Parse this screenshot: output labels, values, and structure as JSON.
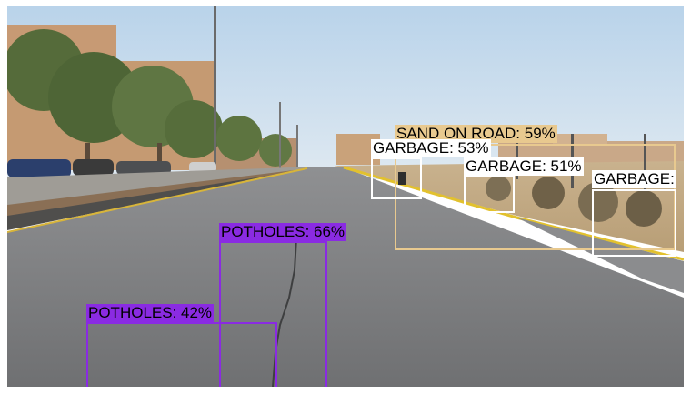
{
  "colors": {
    "pothole": "#8a2be2",
    "sand": "#e8c98f",
    "garbage": "#ffffff"
  },
  "detections": [
    {
      "label": "SAND  ON  ROAD: 59%",
      "class": "sand",
      "icon": "sand-on-road-detection"
    },
    {
      "label": "GARBAGE: 53%",
      "class": "garbage",
      "icon": "garbage-detection"
    },
    {
      "label": "GARBAGE: 51%",
      "class": "garbage",
      "icon": "garbage-detection"
    },
    {
      "label": "GARBAGE:",
      "class": "garbage",
      "icon": "garbage-detection"
    },
    {
      "label": "POTHOLES: 66%",
      "class": "pothole",
      "icon": "pothole-detection"
    },
    {
      "label": "POTHOLES: 42%",
      "class": "pothole",
      "icon": "pothole-detection"
    }
  ]
}
